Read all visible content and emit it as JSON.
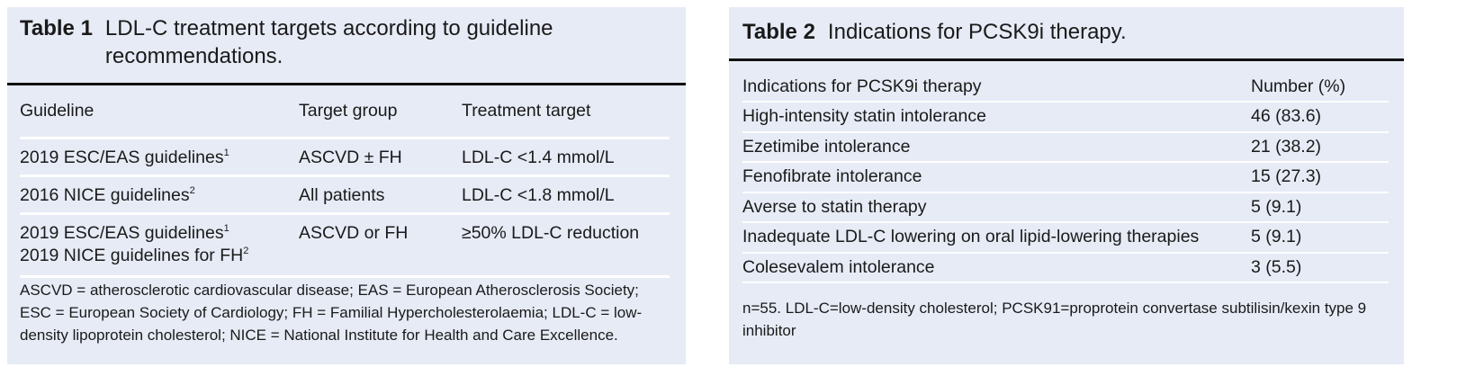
{
  "table1": {
    "label": "Table 1",
    "title": "LDL-C treatment targets according to guideline recommendations.",
    "columns": [
      "Guideline",
      "Target group",
      "Treatment target"
    ],
    "rows": [
      [
        [
          {
            "text": "2019 ESC/EAS guidelines",
            "ref": "1"
          }
        ],
        "ASCVD ± FH",
        "LDL-C <1.4 mmol/L"
      ],
      [
        [
          {
            "text": "2016 NICE guidelines",
            "ref": "2"
          }
        ],
        "All patients",
        "LDL-C <1.8 mmol/L"
      ],
      [
        [
          {
            "text": "2019 ESC/EAS guidelines",
            "ref": "1"
          },
          {
            "text": "2019 NICE guidelines for FH",
            "ref": "2"
          }
        ],
        "ASCVD or FH",
        "≥50% LDL-C reduction"
      ]
    ],
    "footnote": "ASCVD = atherosclerotic cardiovascular disease; EAS = European Atherosclerosis Society; ESC = European Society of Cardiology; FH = Familial Hypercholesterolaemia; LDL-C = low-density lipoprotein cholesterol; NICE = National Institute for Health and Care Excellence."
  },
  "table2": {
    "label": "Table 2",
    "title": "Indications for PCSK9i therapy.",
    "columns": [
      "Indications for PCSK9i therapy",
      "Number (%)"
    ],
    "rows": [
      [
        "High-intensity statin intolerance",
        "46 (83.6)"
      ],
      [
        "Ezetimibe intolerance",
        "21 (38.2)"
      ],
      [
        "Fenofibrate intolerance",
        "15 (27.3)"
      ],
      [
        "Averse to statin therapy",
        "5 (9.1)"
      ],
      [
        "Inadequate LDL-C lowering on oral lipid-lowering therapies",
        "5 (9.1)"
      ],
      [
        "Colesevalem intolerance",
        "3 (5.5)"
      ]
    ],
    "footnote": "n=55. LDL-C=low-density cholesterol; PCSK91=proprotein convertase subtilisin/kexin type 9 inhibitor"
  }
}
